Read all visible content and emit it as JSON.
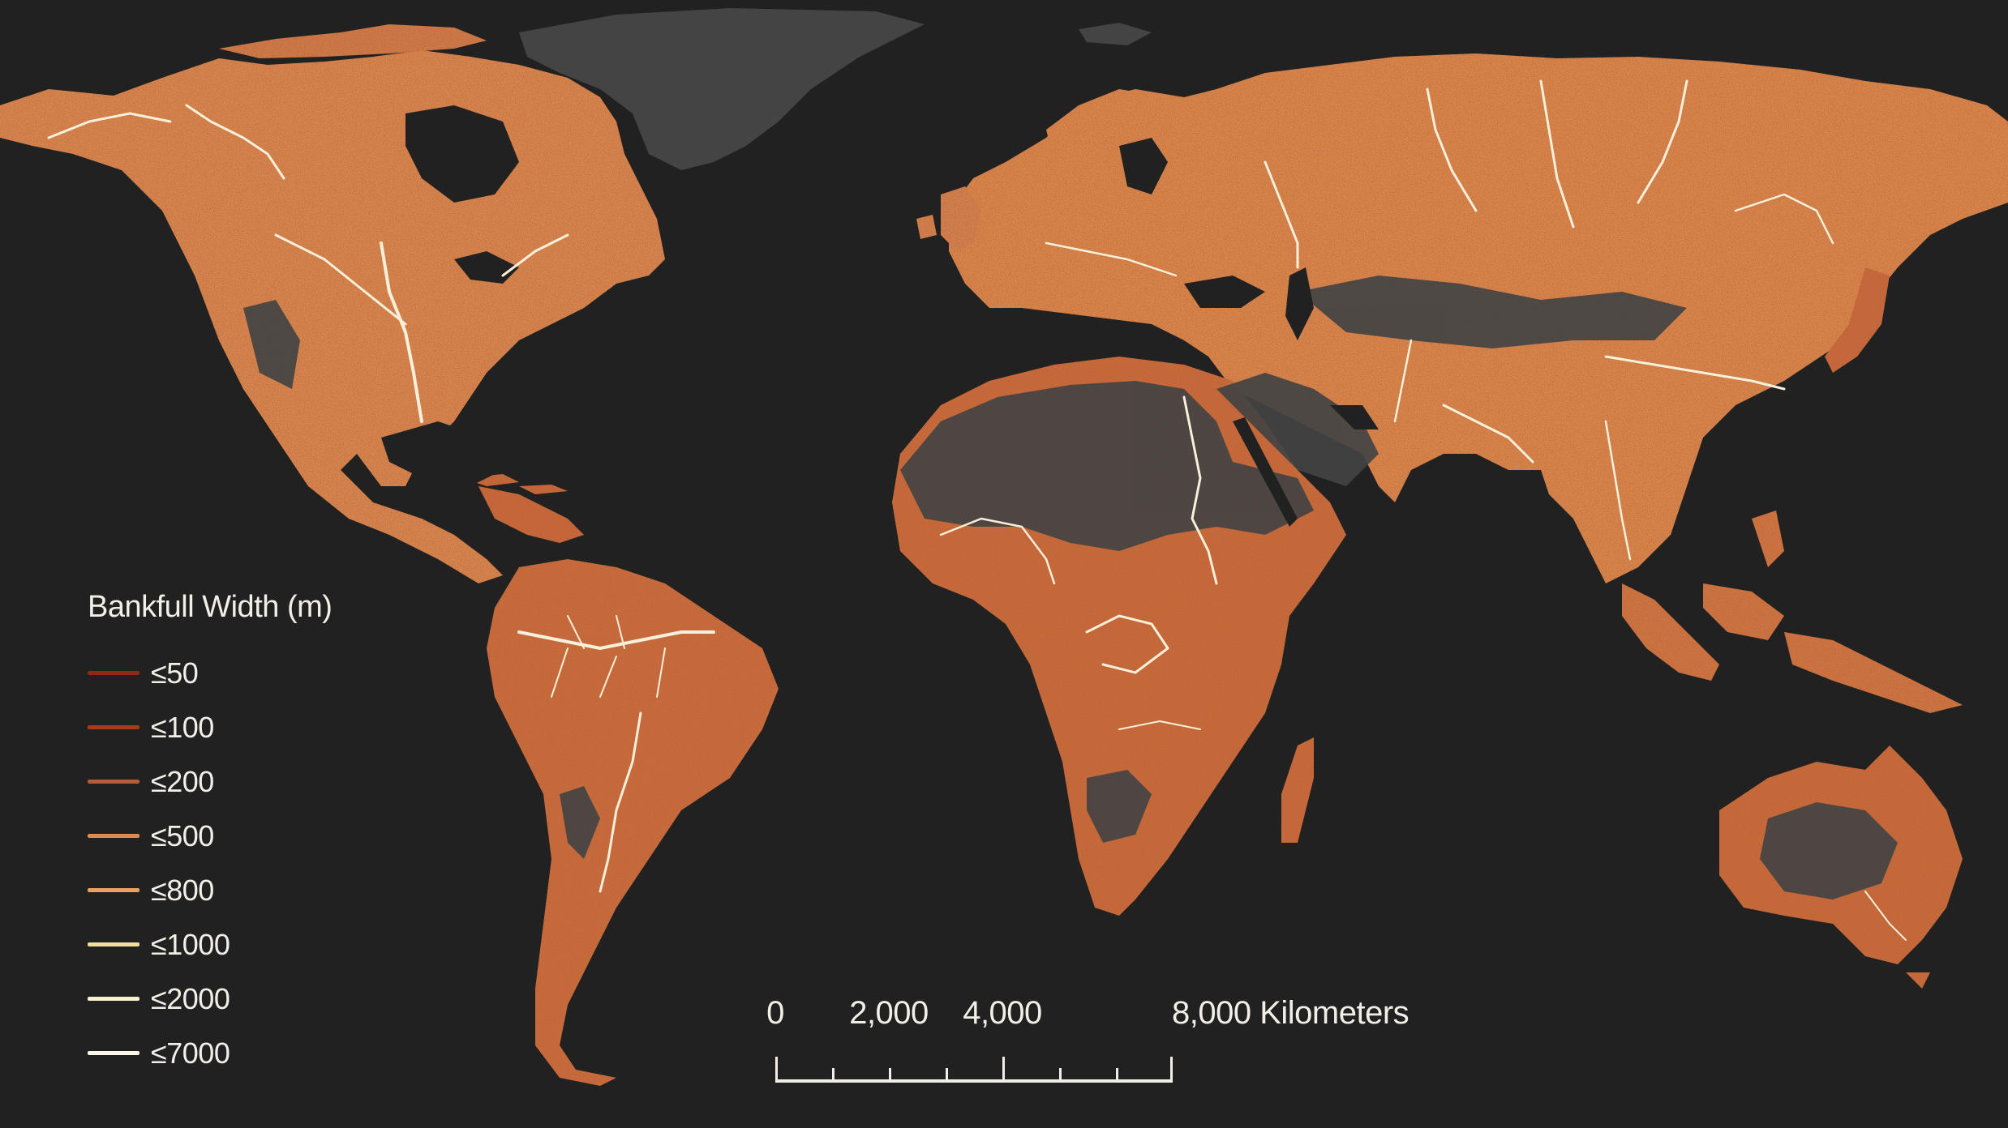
{
  "legend": {
    "title": "Bankfull Width (m)",
    "items": [
      {
        "label": "≤50",
        "color": "#8e2a14"
      },
      {
        "label": "≤100",
        "color": "#a8391c"
      },
      {
        "label": "≤200",
        "color": "#b85a33"
      },
      {
        "label": "≤500",
        "color": "#dd8a52"
      },
      {
        "label": "≤800",
        "color": "#e7a166"
      },
      {
        "label": "≤1000",
        "color": "#f1de9c"
      },
      {
        "label": "≤2000",
        "color": "#f7f1cf"
      },
      {
        "label": "≤7000",
        "color": "#fbf8ea"
      }
    ]
  },
  "scale_bar": {
    "labels": [
      "0",
      "2,000",
      "4,000",
      "8,000 Kilometers"
    ],
    "values_km": [
      0,
      2000,
      4000,
      8000
    ]
  },
  "colors": {
    "background": "#212121",
    "land_dry": "#444444",
    "river_density": "#c9693a",
    "river_major": "#f8f0da"
  }
}
